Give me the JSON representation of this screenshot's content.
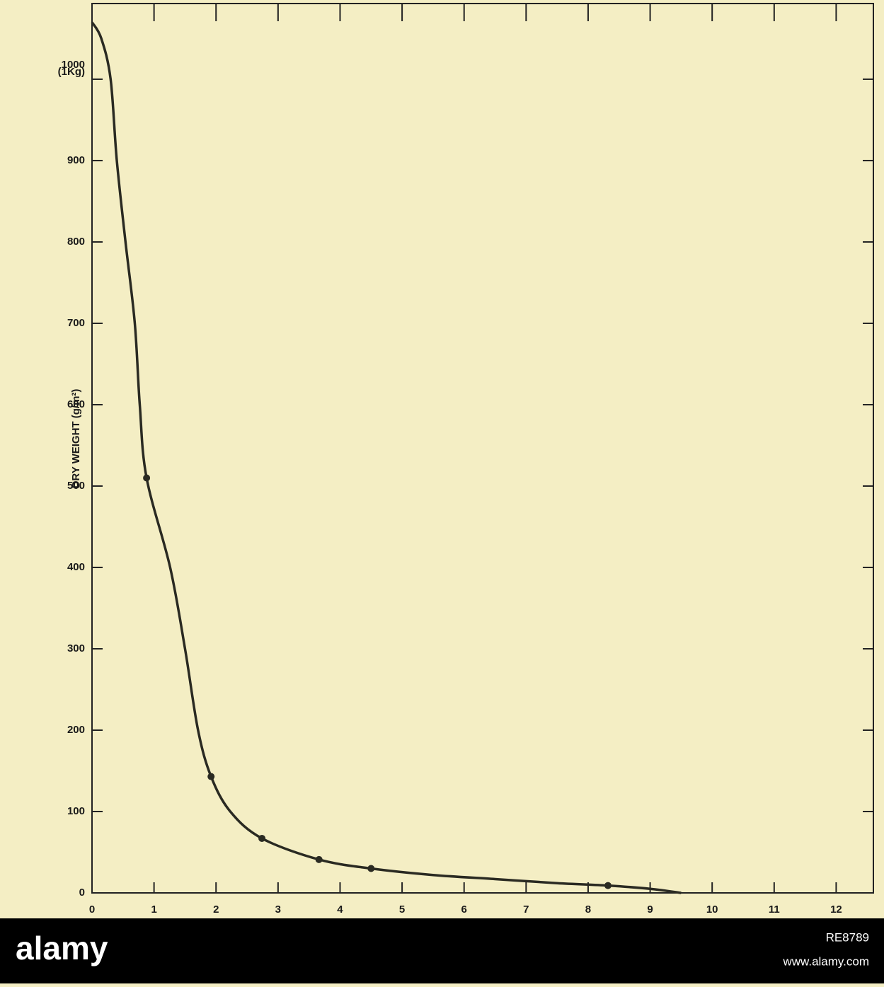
{
  "chart_data": {
    "type": "line",
    "y_label": "DRY WEIGHT (g/m²)",
    "y_annotation": "(1Kg)",
    "x": [
      0,
      0.15,
      0.3,
      0.4,
      0.54,
      0.69,
      0.77,
      0.88,
      1.26,
      1.5,
      1.71,
      1.92,
      2.23,
      2.74,
      3.66,
      4.5,
      5.5,
      6.5,
      7.5,
      8.32,
      9,
      9.5
    ],
    "values": [
      1070,
      1050,
      1000,
      900,
      800,
      700,
      600,
      510,
      400,
      300,
      200,
      143,
      100,
      67,
      41,
      30,
      22,
      17,
      12,
      9,
      5,
      0
    ],
    "markers": {
      "x": [
        0.88,
        1.92,
        2.74,
        3.66,
        4.5,
        8.32
      ],
      "values": [
        510,
        143,
        67,
        41,
        30,
        9
      ]
    },
    "color": "#2a2a22",
    "xlim": [
      0,
      12.6
    ],
    "xticks": [
      0,
      1,
      2,
      3,
      4,
      5,
      6,
      7,
      8,
      9,
      10,
      11,
      12
    ],
    "ylim": [
      0,
      1093
    ],
    "yticks": [
      0,
      100,
      200,
      300,
      400,
      500,
      600,
      700,
      800,
      900,
      1000
    ]
  },
  "footer": {
    "brand": "alamy",
    "image_id": "RE8789",
    "site": "www.alamy.com"
  }
}
